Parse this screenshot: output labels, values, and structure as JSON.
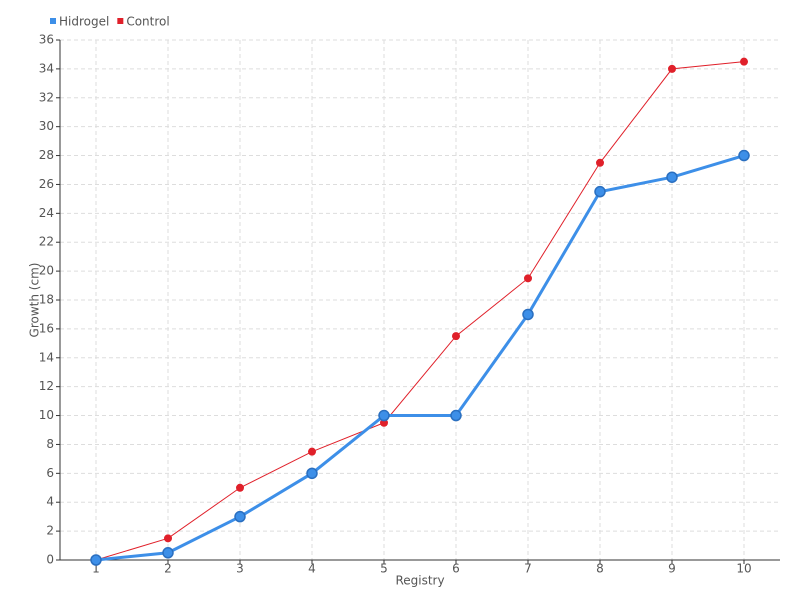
{
  "chart_data": {
    "type": "line",
    "x_label": "Registry",
    "y_label": "Growth (cm)",
    "categories": [
      "1",
      "2",
      "3",
      "4",
      "5",
      "6",
      "7",
      "8",
      "9",
      "10"
    ],
    "series": [
      {
        "name": "Hidrogel",
        "color": "#3d8fe8",
        "values": [
          0,
          0.5,
          3,
          6,
          10,
          10,
          17,
          25.5,
          26.5,
          28
        ]
      },
      {
        "name": "Control",
        "color": "#e0202a",
        "values": [
          0,
          1.5,
          5,
          7.5,
          9.5,
          15.5,
          19.5,
          27.5,
          34,
          34.5
        ]
      }
    ],
    "ylim": [
      0,
      36
    ],
    "yticks": [
      0,
      2,
      4,
      6,
      8,
      10,
      12,
      14,
      16,
      18,
      20,
      22,
      24,
      26,
      28,
      30,
      32,
      34,
      36
    ],
    "grid": true,
    "legend": "top-left"
  }
}
